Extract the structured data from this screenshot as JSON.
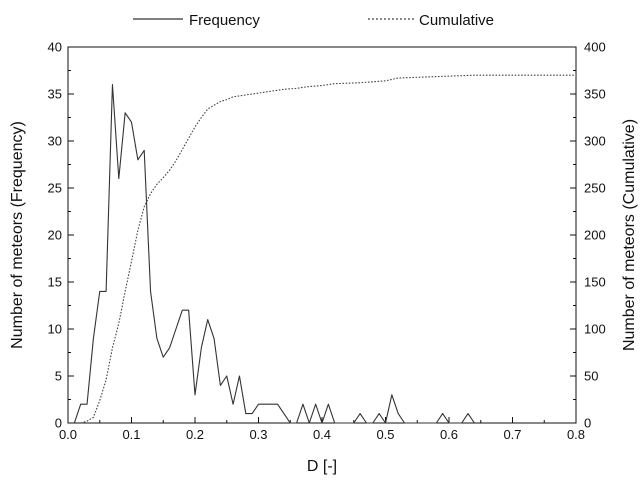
{
  "chart_data": {
    "type": "line",
    "xlabel": "D [-]",
    "ylabel_left": "Number of meteors (Frequency)",
    "ylabel_right": "Number of meteors (Cumulative)",
    "xlim": [
      0,
      0.8
    ],
    "ylim_left": [
      0,
      40
    ],
    "ylim_right": [
      0,
      400
    ],
    "x_ticks": [
      "0.0",
      "0.1",
      "0.2",
      "0.3",
      "0.4",
      "0.5",
      "0.6",
      "0.7",
      "0.8"
    ],
    "y_left_ticks": [
      "0",
      "5",
      "10",
      "15",
      "20",
      "25",
      "30",
      "35",
      "40"
    ],
    "y_right_ticks": [
      "0",
      "50",
      "100",
      "150",
      "200",
      "250",
      "300",
      "350",
      "400"
    ],
    "grid": false,
    "legend_position": "top",
    "series": [
      {
        "name": "Frequency",
        "axis": "left",
        "line_style": "solid",
        "color": "#333333",
        "points": [
          [
            0.01,
            0
          ],
          [
            0.02,
            2
          ],
          [
            0.03,
            2
          ],
          [
            0.04,
            9
          ],
          [
            0.05,
            14
          ],
          [
            0.06,
            14
          ],
          [
            0.07,
            36
          ],
          [
            0.08,
            26
          ],
          [
            0.09,
            33
          ],
          [
            0.1,
            32
          ],
          [
            0.11,
            28
          ],
          [
            0.12,
            29
          ],
          [
            0.13,
            14
          ],
          [
            0.14,
            9
          ],
          [
            0.15,
            7
          ],
          [
            0.16,
            8
          ],
          [
            0.17,
            10
          ],
          [
            0.18,
            12
          ],
          [
            0.19,
            12
          ],
          [
            0.2,
            3
          ],
          [
            0.21,
            8
          ],
          [
            0.22,
            11
          ],
          [
            0.23,
            9
          ],
          [
            0.24,
            4
          ],
          [
            0.25,
            5
          ],
          [
            0.26,
            2
          ],
          [
            0.27,
            5
          ],
          [
            0.28,
            1
          ],
          [
            0.29,
            1
          ],
          [
            0.3,
            2
          ],
          [
            0.31,
            2
          ],
          [
            0.32,
            2
          ],
          [
            0.33,
            2
          ],
          [
            0.34,
            1
          ],
          [
            0.35,
            0
          ],
          [
            0.36,
            0
          ],
          [
            0.37,
            2
          ],
          [
            0.38,
            0
          ],
          [
            0.39,
            2
          ],
          [
            0.4,
            0
          ],
          [
            0.41,
            2
          ],
          [
            0.42,
            0
          ],
          [
            0.43,
            0
          ],
          [
            0.44,
            0
          ],
          [
            0.45,
            0
          ],
          [
            0.46,
            1
          ],
          [
            0.47,
            0
          ],
          [
            0.48,
            0
          ],
          [
            0.49,
            1
          ],
          [
            0.5,
            0
          ],
          [
            0.51,
            3
          ],
          [
            0.52,
            1
          ],
          [
            0.53,
            0
          ],
          [
            0.54,
            0
          ],
          [
            0.55,
            0
          ],
          [
            0.56,
            0
          ],
          [
            0.57,
            0
          ],
          [
            0.58,
            0
          ],
          [
            0.59,
            1
          ],
          [
            0.6,
            0
          ],
          [
            0.61,
            0
          ],
          [
            0.62,
            0
          ],
          [
            0.63,
            1
          ],
          [
            0.64,
            0
          ]
        ]
      },
      {
        "name": "Cumulative",
        "axis": "right",
        "line_style": "dotted",
        "color": "#444444",
        "points": [
          [
            0.02,
            0
          ],
          [
            0.03,
            2
          ],
          [
            0.04,
            6
          ],
          [
            0.05,
            24
          ],
          [
            0.06,
            46
          ],
          [
            0.07,
            80
          ],
          [
            0.08,
            106
          ],
          [
            0.09,
            140
          ],
          [
            0.1,
            172
          ],
          [
            0.11,
            205
          ],
          [
            0.12,
            230
          ],
          [
            0.13,
            244
          ],
          [
            0.14,
            254
          ],
          [
            0.15,
            261
          ],
          [
            0.16,
            269
          ],
          [
            0.17,
            279
          ],
          [
            0.18,
            291
          ],
          [
            0.19,
            303
          ],
          [
            0.2,
            315
          ],
          [
            0.21,
            325
          ],
          [
            0.22,
            334
          ],
          [
            0.23,
            338
          ],
          [
            0.24,
            342
          ],
          [
            0.25,
            344
          ],
          [
            0.26,
            347
          ],
          [
            0.28,
            349
          ],
          [
            0.3,
            351
          ],
          [
            0.32,
            353
          ],
          [
            0.34,
            355
          ],
          [
            0.36,
            356
          ],
          [
            0.38,
            358
          ],
          [
            0.4,
            359
          ],
          [
            0.42,
            361
          ],
          [
            0.46,
            362
          ],
          [
            0.5,
            364
          ],
          [
            0.52,
            367
          ],
          [
            0.56,
            368
          ],
          [
            0.6,
            369
          ],
          [
            0.64,
            370
          ],
          [
            0.8,
            370
          ]
        ]
      }
    ]
  }
}
